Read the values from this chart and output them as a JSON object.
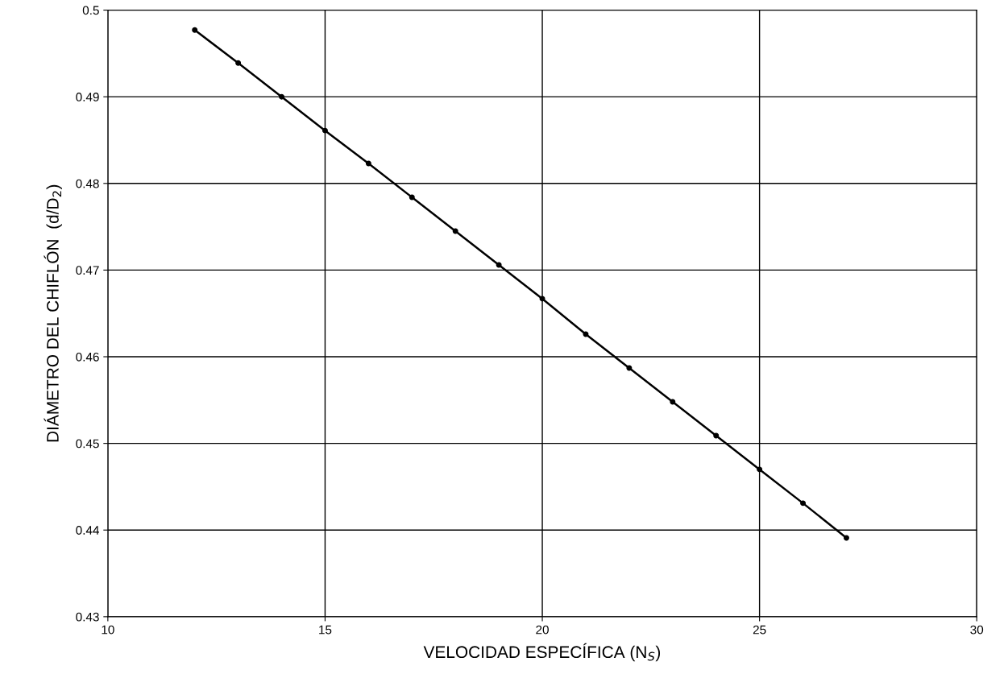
{
  "chart_data": {
    "type": "line",
    "xlabel": "VELOCIDAD ESPECÍFICA (N$_{S}$)",
    "ylabel": "DIÁMETRO DEL CHIFLÓN  (d/D$_{2}$)",
    "x": [
      12,
      13,
      14,
      15,
      16,
      17,
      18,
      19,
      20,
      21,
      22,
      23,
      24,
      25,
      26,
      27
    ],
    "series": [
      {
        "color": "#000000",
        "values": [
          0.4977,
          0.4939,
          0.49,
          0.4861,
          0.4823,
          0.4784,
          0.4745,
          0.4706,
          0.4667,
          0.4626,
          0.4587,
          0.4548,
          0.4509,
          0.447,
          0.4431,
          0.4391
        ]
      }
    ],
    "xlim": [
      10,
      30
    ],
    "xticks": [
      10,
      15,
      20,
      25,
      30
    ],
    "ylim": [
      0.43,
      0.5
    ],
    "yticks": [
      {
        "value": 0.43,
        "label": "0.43"
      },
      {
        "value": 0.44,
        "label": "0.44"
      },
      {
        "value": 0.45,
        "label": "0.45"
      },
      {
        "value": 0.46,
        "label": "0.46"
      },
      {
        "value": 0.47,
        "label": "0.47"
      },
      {
        "value": 0.48,
        "label": "0.48"
      },
      {
        "value": 0.49,
        "label": "0.49"
      },
      {
        "value": 0.5,
        "label": "0.5"
      }
    ],
    "grid": true,
    "marker": "circle",
    "line_style": "solid"
  }
}
